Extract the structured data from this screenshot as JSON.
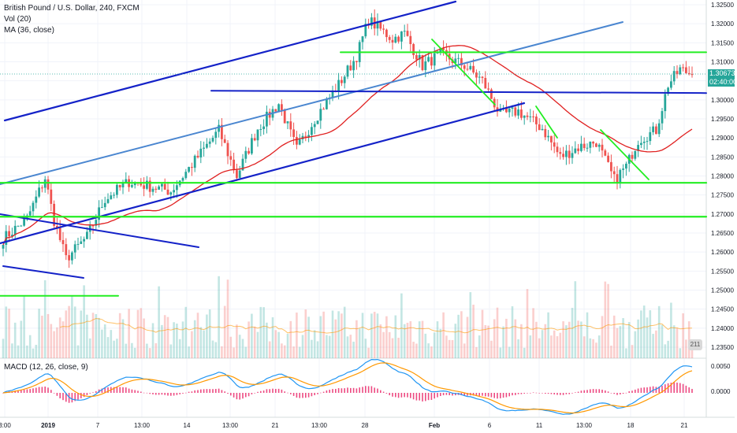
{
  "legend": {
    "title": "British Pound / U.S. Dollar, 240, FXCM",
    "volume": "Vol (20)",
    "ma": "MA (36, close)",
    "macd": "MACD (12, 26, close, 9)"
  },
  "price_axis": {
    "ticks": [
      "1.32500",
      "1.32000",
      "1.31500",
      "1.31000",
      "1.30500",
      "1.30000",
      "1.29500",
      "1.29000",
      "1.28500",
      "1.28000",
      "1.27500",
      "1.27000",
      "1.26500",
      "1.26000",
      "1.25500",
      "1.25000",
      "1.24500",
      "1.24000",
      "1.23500"
    ],
    "last_price": "1.30673",
    "countdown": "02:40:00"
  },
  "macd_axis": {
    "ticks": [
      "0.0050",
      "0.0000"
    ]
  },
  "time_axis": {
    "ticks": [
      "3:00",
      "2019",
      "7",
      "13:00",
      "14",
      "13:00",
      "21",
      "13:00",
      "28",
      "Feb",
      "6",
      "11",
      "13:00",
      "18",
      "21"
    ]
  },
  "badge": "211",
  "colors": {
    "up": "#26a69a",
    "down": "#ef5350",
    "ma": "#e02020",
    "trend_blue": "#1422c8",
    "trend_light": "#4a86d0",
    "support_green": "#22ee22",
    "macd_line": "#2196f3",
    "signal_line": "#ff9800",
    "hist": "#e91e63"
  },
  "chart_data": {
    "type": "candlestick",
    "title": "British Pound / U.S. Dollar, 240, FXCM",
    "symbol": "GBPUSD",
    "interval": "240",
    "ylim": [
      1.2335,
      1.3275
    ],
    "key_prices": {
      "last": 1.30673,
      "resistance": 1.3125,
      "mid_line": 1.3022,
      "support_upper": 1.2782,
      "support_lower": 1.2693,
      "support_bottom": 1.2485
    },
    "anchors": [
      {
        "bar": 0,
        "price": 1.2635
      },
      {
        "bar": 8,
        "price": 1.2688
      },
      {
        "bar": 14,
        "price": 1.2795
      },
      {
        "bar": 17,
        "price": 1.2683
      },
      {
        "bar": 21,
        "price": 1.2582
      },
      {
        "bar": 28,
        "price": 1.264
      },
      {
        "bar": 34,
        "price": 1.274
      },
      {
        "bar": 42,
        "price": 1.2785
      },
      {
        "bar": 56,
        "price": 1.276
      },
      {
        "bar": 64,
        "price": 1.284
      },
      {
        "bar": 72,
        "price": 1.292
      },
      {
        "bar": 78,
        "price": 1.28
      },
      {
        "bar": 85,
        "price": 1.2925
      },
      {
        "bar": 92,
        "price": 1.299
      },
      {
        "bar": 98,
        "price": 1.287
      },
      {
        "bar": 104,
        "price": 1.295
      },
      {
        "bar": 112,
        "price": 1.304
      },
      {
        "bar": 118,
        "price": 1.3115
      },
      {
        "bar": 122,
        "price": 1.321
      },
      {
        "bar": 130,
        "price": 1.316
      },
      {
        "bar": 134,
        "price": 1.3175
      },
      {
        "bar": 140,
        "price": 1.309
      },
      {
        "bar": 146,
        "price": 1.312
      },
      {
        "bar": 154,
        "price": 1.309
      },
      {
        "bar": 160,
        "price": 1.305
      },
      {
        "bar": 166,
        "price": 1.296
      },
      {
        "bar": 172,
        "price": 1.297
      },
      {
        "bar": 180,
        "price": 1.2925
      },
      {
        "bar": 186,
        "price": 1.285
      },
      {
        "bar": 192,
        "price": 1.2875
      },
      {
        "bar": 198,
        "price": 1.289
      },
      {
        "bar": 204,
        "price": 1.279
      },
      {
        "bar": 208,
        "price": 1.2825
      },
      {
        "bar": 212,
        "price": 1.2895
      },
      {
        "bar": 218,
        "price": 1.292
      },
      {
        "bar": 222,
        "price": 1.304
      },
      {
        "bar": 226,
        "price": 1.308
      },
      {
        "bar": 230,
        "price": 1.3067
      }
    ],
    "ma_period": 36,
    "volume_period": 20,
    "macd_params": [
      12,
      26,
      9
    ]
  }
}
